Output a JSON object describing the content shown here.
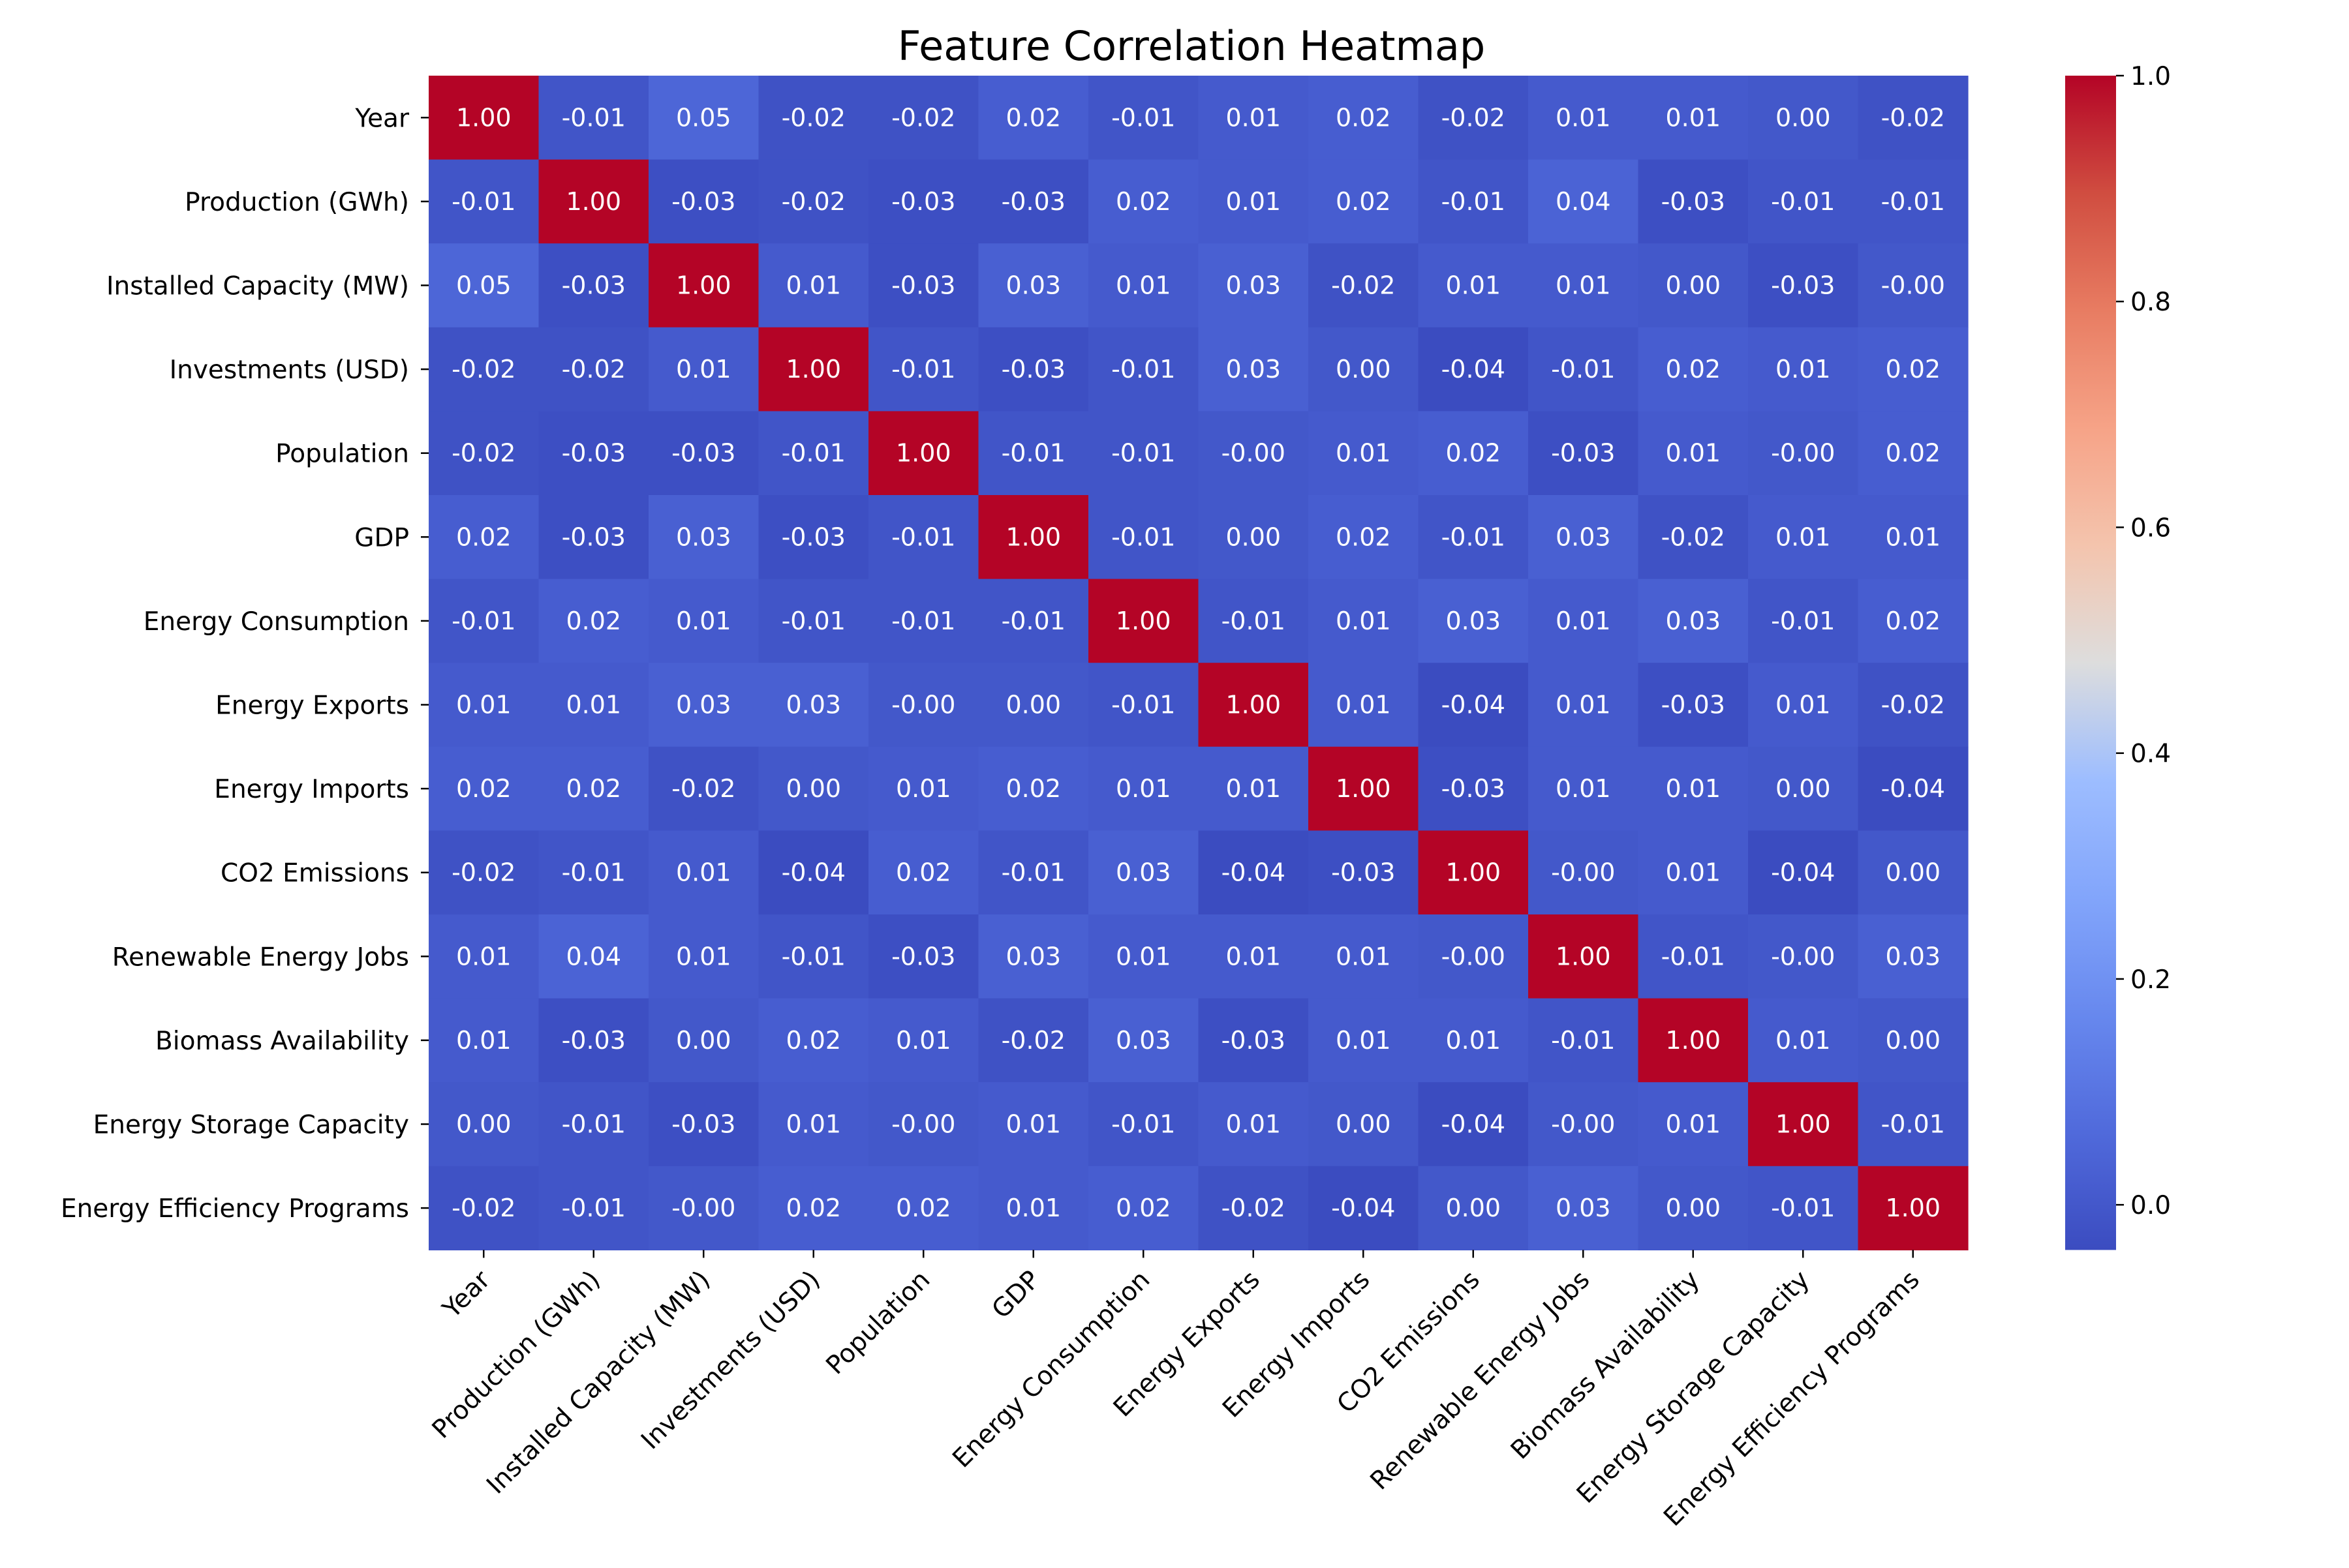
{
  "chart_data": {
    "type": "heatmap",
    "title": "Feature Correlation Heatmap",
    "row_labels": [
      "Year",
      "Production (GWh)",
      "Installed Capacity (MW)",
      "Investments (USD)",
      "Population",
      "GDP",
      "Energy Consumption",
      "Energy Exports",
      "Energy Imports",
      "CO2 Emissions",
      "Renewable Energy Jobs",
      "Biomass Availability",
      "Energy Storage Capacity",
      "Energy Efficiency Programs"
    ],
    "col_labels": [
      "Year",
      "Production (GWh)",
      "Installed Capacity (MW)",
      "Investments (USD)",
      "Population",
      "GDP",
      "Energy Consumption",
      "Energy Exports",
      "Energy Imports",
      "CO2 Emissions",
      "Renewable Energy Jobs",
      "Biomass Availability",
      "Energy Storage Capacity",
      "Energy Efficiency Programs"
    ],
    "values": [
      [
        1.0,
        -0.01,
        0.05,
        -0.02,
        -0.02,
        0.02,
        -0.01,
        0.01,
        0.02,
        -0.02,
        0.01,
        0.01,
        0.0,
        -0.02
      ],
      [
        -0.01,
        1.0,
        -0.03,
        -0.02,
        -0.03,
        -0.03,
        0.02,
        0.01,
        0.02,
        -0.01,
        0.04,
        -0.03,
        -0.01,
        -0.01
      ],
      [
        0.05,
        -0.03,
        1.0,
        0.01,
        -0.03,
        0.03,
        0.01,
        0.03,
        -0.02,
        0.01,
        0.01,
        0.0,
        -0.03,
        -0.0
      ],
      [
        -0.02,
        -0.02,
        0.01,
        1.0,
        -0.01,
        -0.03,
        -0.01,
        0.03,
        0.0,
        -0.04,
        -0.01,
        0.02,
        0.01,
        0.02
      ],
      [
        -0.02,
        -0.03,
        -0.03,
        -0.01,
        1.0,
        -0.01,
        -0.01,
        -0.0,
        0.01,
        0.02,
        -0.03,
        0.01,
        -0.0,
        0.02
      ],
      [
        0.02,
        -0.03,
        0.03,
        -0.03,
        -0.01,
        1.0,
        -0.01,
        0.0,
        0.02,
        -0.01,
        0.03,
        -0.02,
        0.01,
        0.01
      ],
      [
        -0.01,
        0.02,
        0.01,
        -0.01,
        -0.01,
        -0.01,
        1.0,
        -0.01,
        0.01,
        0.03,
        0.01,
        0.03,
        -0.01,
        0.02
      ],
      [
        0.01,
        0.01,
        0.03,
        0.03,
        -0.0,
        0.0,
        -0.01,
        1.0,
        0.01,
        -0.04,
        0.01,
        -0.03,
        0.01,
        -0.02
      ],
      [
        0.02,
        0.02,
        -0.02,
        0.0,
        0.01,
        0.02,
        0.01,
        0.01,
        1.0,
        -0.03,
        0.01,
        0.01,
        0.0,
        -0.04
      ],
      [
        -0.02,
        -0.01,
        0.01,
        -0.04,
        0.02,
        -0.01,
        0.03,
        -0.04,
        -0.03,
        1.0,
        -0.0,
        0.01,
        -0.04,
        0.0
      ],
      [
        0.01,
        0.04,
        0.01,
        -0.01,
        -0.03,
        0.03,
        0.01,
        0.01,
        0.01,
        -0.0,
        1.0,
        -0.01,
        -0.0,
        0.03
      ],
      [
        0.01,
        -0.03,
        0.0,
        0.02,
        0.01,
        -0.02,
        0.03,
        -0.03,
        0.01,
        0.01,
        -0.01,
        1.0,
        0.01,
        0.0
      ],
      [
        0.0,
        -0.01,
        -0.03,
        0.01,
        -0.0,
        0.01,
        -0.01,
        0.01,
        0.0,
        -0.04,
        -0.0,
        0.01,
        1.0,
        -0.01
      ],
      [
        -0.02,
        -0.01,
        -0.0,
        0.02,
        0.02,
        0.01,
        0.02,
        -0.02,
        -0.04,
        0.0,
        0.03,
        0.0,
        -0.01,
        1.0
      ]
    ],
    "value_format": "2 decimals",
    "colormap": "coolwarm",
    "colorbar": {
      "range": [
        -0.04,
        1.0
      ],
      "ticks": [
        0.0,
        0.2,
        0.4,
        0.6,
        0.8,
        1.0
      ],
      "tick_labels": [
        "0.0",
        "0.2",
        "0.4",
        "0.6",
        "0.8",
        "1.0"
      ]
    }
  }
}
